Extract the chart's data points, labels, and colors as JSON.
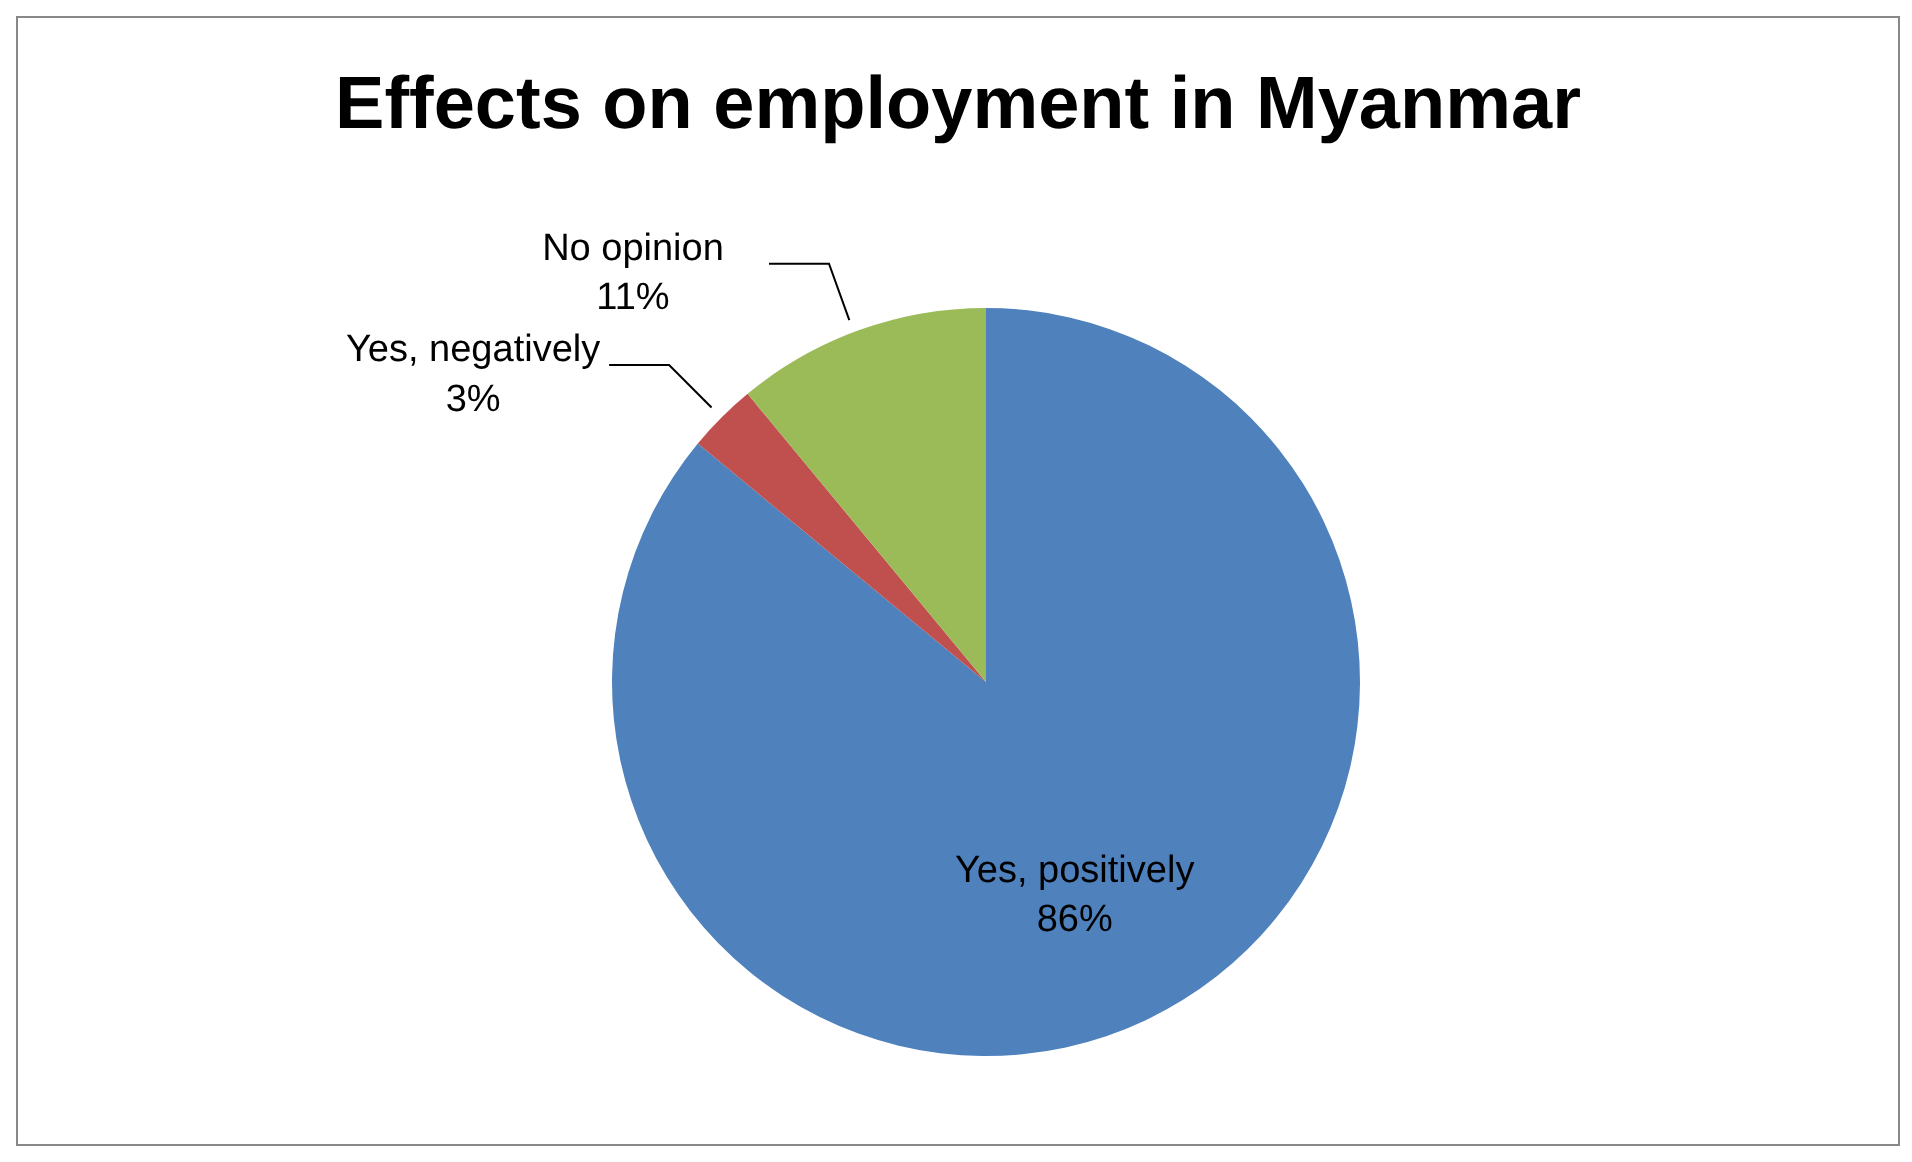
{
  "chart_data": {
    "type": "pie",
    "title": "Effects on employment in Myanmar",
    "categories": [
      "Yes, positively",
      "Yes, negatively",
      "No opinion"
    ],
    "values": [
      86,
      3,
      11
    ],
    "colors": [
      "#4f81bd",
      "#c0504d",
      "#9bbb59"
    ],
    "value_labels": [
      "86%",
      "3%",
      "11%"
    ],
    "legend": false
  }
}
